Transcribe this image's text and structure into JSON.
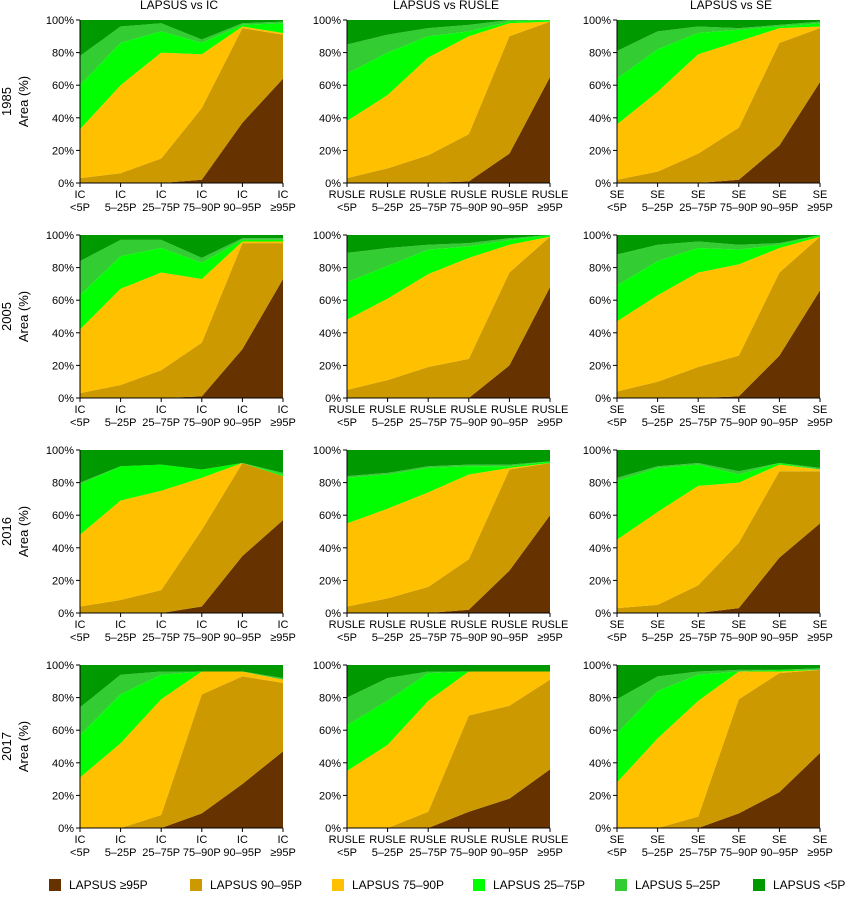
{
  "chart_data": {
    "type": "area",
    "stacked": true,
    "ylim": [
      0,
      100
    ],
    "y_ticks": [
      "0%",
      "20%",
      "40%",
      "60%",
      "80%",
      "100%"
    ],
    "grid": false,
    "legend_position": "bottom",
    "column_titles": [
      "LAPSUS vs IC",
      "LAPSUS vs RUSLE",
      "LAPSUS vs SE"
    ],
    "row_titles": [
      "1985",
      "2005",
      "2016",
      "2017"
    ],
    "ylabel": "Area (%)",
    "x_prefixes": [
      "IC",
      "RUSLE",
      "SE"
    ],
    "x_ranges": [
      "<5P",
      "5–25P",
      "25–75P",
      "75–90P",
      "90–95P",
      "≥95P"
    ],
    "series": [
      {
        "name": "LAPSUS ≥95P",
        "color": "#663300"
      },
      {
        "name": "LAPSUS 90–95P",
        "color": "#CC9900"
      },
      {
        "name": "LAPSUS 75–90P",
        "color": "#FFC000"
      },
      {
        "name": "LAPSUS 25–75P",
        "color": "#00FF00"
      },
      {
        "name": "LAPSUS 5–25P",
        "color": "#33CC33"
      },
      {
        "name": "LAPSUS <5P",
        "color": "#009900"
      }
    ],
    "panels": [
      {
        "year": "1985",
        "comparison": "IC",
        "cumulative": [
          [
            0,
            0,
            0,
            2,
            37,
            64
          ],
          [
            3,
            6,
            15,
            46,
            95,
            91
          ],
          [
            33,
            60,
            80,
            79,
            96,
            92
          ],
          [
            60,
            86,
            93,
            86,
            97,
            98
          ],
          [
            78,
            96,
            98,
            88,
            98,
            99
          ],
          [
            100,
            100,
            100,
            100,
            100,
            100
          ]
        ]
      },
      {
        "year": "1985",
        "comparison": "RUSLE",
        "cumulative": [
          [
            0,
            0,
            0,
            1,
            18,
            65
          ],
          [
            3,
            9,
            17,
            30,
            90,
            99
          ],
          [
            38,
            54,
            77,
            90,
            98,
            99
          ],
          [
            67,
            80,
            90,
            93,
            99,
            100
          ],
          [
            85,
            91,
            95,
            97,
            100,
            100
          ],
          [
            100,
            100,
            100,
            100,
            100,
            100
          ]
        ]
      },
      {
        "year": "1985",
        "comparison": "SE",
        "cumulative": [
          [
            0,
            0,
            0,
            2,
            23,
            62
          ],
          [
            2,
            7,
            18,
            34,
            86,
            95
          ],
          [
            36,
            56,
            79,
            87,
            95,
            96
          ],
          [
            64,
            82,
            92,
            94,
            96,
            98
          ],
          [
            81,
            93,
            96,
            95,
            97,
            99
          ],
          [
            100,
            100,
            100,
            100,
            100,
            100
          ]
        ]
      },
      {
        "year": "2005",
        "comparison": "IC",
        "cumulative": [
          [
            0,
            0,
            0,
            1,
            30,
            73
          ],
          [
            3,
            8,
            17,
            34,
            95,
            95
          ],
          [
            42,
            67,
            77,
            73,
            96,
            96
          ],
          [
            63,
            87,
            92,
            83,
            97,
            97
          ],
          [
            84,
            97,
            97,
            86,
            98,
            98
          ],
          [
            100,
            100,
            100,
            100,
            100,
            100
          ]
        ]
      },
      {
        "year": "2005",
        "comparison": "RUSLE",
        "cumulative": [
          [
            0,
            0,
            0,
            0,
            20,
            68
          ],
          [
            5,
            11,
            19,
            24,
            77,
            99
          ],
          [
            48,
            61,
            76,
            86,
            94,
            99
          ],
          [
            71,
            81,
            91,
            93,
            97,
            100
          ],
          [
            89,
            92,
            94,
            95,
            98,
            100
          ],
          [
            100,
            100,
            100,
            100,
            100,
            100
          ]
        ]
      },
      {
        "year": "2005",
        "comparison": "SE",
        "cumulative": [
          [
            0,
            0,
            0,
            1,
            26,
            66
          ],
          [
            4,
            10,
            19,
            26,
            77,
            99
          ],
          [
            47,
            63,
            77,
            82,
            92,
            99
          ],
          [
            69,
            84,
            92,
            91,
            94,
            100
          ],
          [
            88,
            94,
            96,
            94,
            95,
            100
          ],
          [
            100,
            100,
            100,
            100,
            100,
            100
          ]
        ]
      },
      {
        "year": "2016",
        "comparison": "IC",
        "cumulative": [
          [
            0,
            0,
            0,
            4,
            35,
            57
          ],
          [
            4,
            8,
            14,
            51,
            92,
            84
          ],
          [
            48,
            69,
            75,
            83,
            92,
            84
          ],
          [
            79,
            90,
            91,
            88,
            92,
            85
          ],
          [
            80,
            90,
            91,
            88,
            92,
            86
          ],
          [
            100,
            100,
            100,
            100,
            100,
            100
          ]
        ]
      },
      {
        "year": "2016",
        "comparison": "RUSLE",
        "cumulative": [
          [
            0,
            0,
            0,
            2,
            26,
            60
          ],
          [
            4,
            9,
            16,
            33,
            88,
            92
          ],
          [
            55,
            64,
            74,
            85,
            89,
            92
          ],
          [
            83,
            85,
            89,
            90,
            90,
            93
          ],
          [
            84,
            86,
            90,
            91,
            91,
            93
          ],
          [
            100,
            100,
            100,
            100,
            100,
            100
          ]
        ]
      },
      {
        "year": "2016",
        "comparison": "SE",
        "cumulative": [
          [
            0,
            0,
            0,
            3,
            34,
            55
          ],
          [
            3,
            5,
            17,
            43,
            87,
            87
          ],
          [
            45,
            62,
            78,
            80,
            91,
            88
          ],
          [
            81,
            89,
            91,
            85,
            92,
            88
          ],
          [
            83,
            90,
            92,
            87,
            92,
            89
          ],
          [
            100,
            100,
            100,
            100,
            100,
            100
          ]
        ]
      },
      {
        "year": "2017",
        "comparison": "IC",
        "cumulative": [
          [
            0,
            0,
            0,
            9,
            27,
            47
          ],
          [
            0,
            0,
            8,
            82,
            93,
            89
          ],
          [
            31,
            52,
            79,
            96,
            96,
            91
          ],
          [
            57,
            82,
            94,
            96,
            96,
            91
          ],
          [
            74,
            94,
            96,
            96,
            96,
            92
          ],
          [
            100,
            100,
            100,
            100,
            100,
            100
          ]
        ]
      },
      {
        "year": "2017",
        "comparison": "RUSLE",
        "cumulative": [
          [
            0,
            0,
            0,
            10,
            18,
            36
          ],
          [
            0,
            0,
            10,
            69,
            75,
            91
          ],
          [
            35,
            51,
            78,
            96,
            96,
            96
          ],
          [
            63,
            78,
            95,
            96,
            96,
            96
          ],
          [
            80,
            92,
            96,
            96,
            96,
            96
          ],
          [
            100,
            100,
            100,
            100,
            100,
            100
          ]
        ]
      },
      {
        "year": "2017",
        "comparison": "SE",
        "cumulative": [
          [
            0,
            0,
            0,
            9,
            22,
            46
          ],
          [
            0,
            0,
            7,
            79,
            95,
            97
          ],
          [
            28,
            55,
            78,
            96,
            96,
            97
          ],
          [
            58,
            84,
            94,
            96,
            97,
            97
          ],
          [
            79,
            93,
            96,
            97,
            97,
            98
          ],
          [
            100,
            100,
            100,
            100,
            100,
            100
          ]
        ]
      }
    ]
  }
}
